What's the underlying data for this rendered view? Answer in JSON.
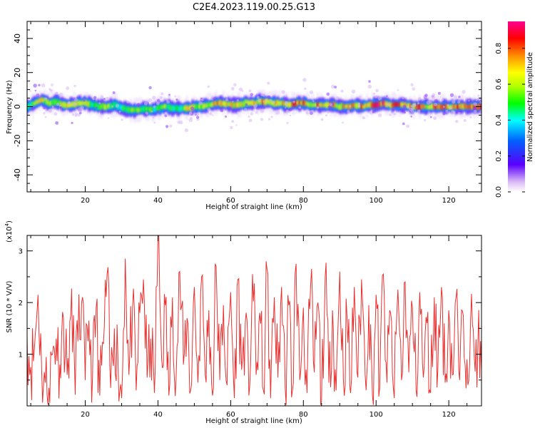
{
  "title": "C2E4.2023.119.00.25.G13",
  "chart_data": [
    {
      "type": "heatmap",
      "xlabel": "Height of straight line (km)",
      "ylabel": "Frequency (Hz)",
      "xlim": [
        4,
        129
      ],
      "ylim": [
        -50,
        50
      ],
      "x_ticks": [
        20,
        40,
        60,
        80,
        100,
        120
      ],
      "y_ticks": [
        -40,
        -20,
        0,
        20,
        40
      ],
      "x_tick_labels": [
        "20",
        "40",
        "60",
        "80",
        "100",
        "120"
      ],
      "y_tick_labels": [
        "-40",
        "-20",
        "0",
        "20",
        "40"
      ],
      "colorbar": {
        "label": "Normalized spectral amplitude",
        "range": [
          0,
          0.95
        ],
        "ticks": [
          0.0,
          0.2,
          0.4,
          0.6,
          0.8
        ],
        "tick_labels": [
          "0.0",
          "0.2",
          "0.4",
          "0.6",
          "0.8"
        ]
      },
      "ridge": {
        "x": [
          4,
          6,
          8,
          10,
          12,
          14,
          16,
          18,
          20,
          22,
          24,
          26,
          28,
          30,
          32,
          34,
          36,
          38,
          40,
          42,
          44,
          46,
          48,
          50,
          52,
          54,
          56,
          58,
          60,
          62,
          64,
          66,
          68,
          70,
          72,
          74,
          76,
          78,
          80,
          82,
          84,
          86,
          88,
          90,
          92,
          94,
          96,
          98,
          100,
          102,
          104,
          106,
          108,
          110,
          112,
          114,
          116,
          118,
          120,
          122,
          124,
          126,
          128
        ],
        "frequency": [
          0,
          2,
          4,
          2,
          3,
          1,
          1,
          2,
          2,
          1,
          0,
          0,
          1,
          -1,
          -2,
          -2,
          -1,
          -2,
          -1,
          0,
          -1,
          -1,
          -1,
          0,
          0,
          1,
          2,
          2,
          1,
          1,
          2,
          2,
          3,
          3,
          2,
          2,
          1,
          2,
          2,
          1,
          1,
          1,
          1,
          0,
          0,
          1,
          0,
          1,
          1,
          2,
          1,
          1,
          1,
          0,
          0,
          0,
          0,
          0,
          0,
          0,
          0,
          0,
          0
        ],
        "amplitude": [
          0.5,
          0.6,
          0.75,
          0.55,
          0.65,
          0.7,
          0.8,
          0.6,
          0.75,
          0.5,
          0.55,
          0.7,
          0.45,
          0.5,
          0.55,
          0.6,
          0.5,
          0.55,
          0.5,
          0.6,
          0.55,
          0.5,
          0.7,
          0.75,
          0.6,
          0.7,
          0.8,
          0.75,
          0.7,
          0.8,
          0.65,
          0.7,
          0.75,
          0.85,
          0.7,
          0.8,
          0.75,
          0.85,
          0.8,
          0.7,
          0.85,
          0.75,
          0.8,
          0.7,
          0.9,
          0.75,
          0.8,
          0.7,
          0.95,
          0.9,
          0.8,
          0.85,
          0.9,
          0.75,
          0.9,
          0.7,
          0.8,
          0.85,
          0.75,
          0.8,
          0.9,
          0.85,
          0.95
        ],
        "spread_hz": 3
      }
    },
    {
      "type": "line",
      "xlabel": "Height of straight line (km)",
      "ylabel": "SNR (10 * V/V)",
      "y_multiplier_label": "(x10",
      "y_multiplier_exp": "4",
      "y_multiplier_close": ")",
      "xlim": [
        4,
        129
      ],
      "ylim": [
        0,
        3.3
      ],
      "x_ticks": [
        20,
        40,
        60,
        80,
        100,
        120
      ],
      "y_ticks": [
        1,
        2,
        3
      ],
      "x_tick_labels": [
        "20",
        "40",
        "60",
        "80",
        "100",
        "120"
      ],
      "y_tick_labels": [
        "1",
        "2",
        "3"
      ],
      "color": "#e8312f",
      "series": [
        {
          "x": [
            4,
            5,
            6,
            7,
            8,
            9,
            10,
            11,
            12,
            13,
            14,
            15,
            16,
            17,
            18,
            19,
            20,
            21,
            22,
            23,
            24,
            25,
            26,
            27,
            28,
            29,
            30,
            31,
            32,
            33,
            34,
            35,
            36,
            37,
            38,
            39,
            40,
            41,
            42,
            43,
            44,
            45,
            46,
            47,
            48,
            49,
            50,
            51,
            52,
            53,
            54,
            55,
            56,
            57,
            58,
            59,
            60,
            61,
            62,
            63,
            64,
            65,
            66,
            67,
            68,
            69,
            70,
            71,
            72,
            73,
            74,
            75,
            76,
            77,
            78,
            79,
            80,
            81,
            82,
            83,
            84,
            85,
            86,
            87,
            88,
            89,
            90,
            91,
            92,
            93,
            94,
            95,
            96,
            97,
            98,
            99,
            100,
            101,
            102,
            103,
            104,
            105,
            106,
            107,
            108,
            109,
            110,
            111,
            112,
            113,
            114,
            115,
            116,
            117,
            118,
            119,
            120,
            121,
            122,
            123,
            124,
            125,
            126,
            127,
            128,
            129
          ],
          "y": [
            1.35,
            0.75,
            1.1,
            2.15,
            0.7,
            0.45,
            0.35,
            1.0,
            1.3,
            0.8,
            1.7,
            0.6,
            1.75,
            0.9,
            1.25,
            2.0,
            0.5,
            1.65,
            0.55,
            1.9,
            0.2,
            1.2,
            2.55,
            0.35,
            1.5,
            0.9,
            0.15,
            2.85,
            0.6,
            1.9,
            0.3,
            1.8,
            2.45,
            0.55,
            1.3,
            0.25,
            3.3,
            0.9,
            1.95,
            0.2,
            2.1,
            0.55,
            2.6,
            0.8,
            1.7,
            0.3,
            2.3,
            0.45,
            2.5,
            0.6,
            1.85,
            0.2,
            2.7,
            0.5,
            1.95,
            0.4,
            2.2,
            0.15,
            2.45,
            0.7,
            1.6,
            0.2,
            2.55,
            0.6,
            1.8,
            0.3,
            2.65,
            0.15,
            2.1,
            0.55,
            2.3,
            0.35,
            1.95,
            0.3,
            2.75,
            0.5,
            1.9,
            0.25,
            2.35,
            0.65,
            2.0,
            0.1,
            2.5,
            0.45,
            1.85,
            0.3,
            2.6,
            0.5,
            1.75,
            0.25,
            2.3,
            0.55,
            2.45,
            0.6,
            1.95,
            0.2,
            2.15,
            0.35,
            2.55,
            0.45,
            1.8,
            0.15,
            2.25,
            0.5,
            2.4,
            0.65,
            1.9,
            0.3,
            2.2,
            0.55,
            1.6,
            0.25,
            2.1,
            0.7,
            2.3,
            0.45,
            1.85,
            0.6,
            2.1,
            0.5,
            1.75,
            0.9,
            1.65,
            0.95,
            1.2,
            0.7
          ]
        }
      ]
    }
  ]
}
